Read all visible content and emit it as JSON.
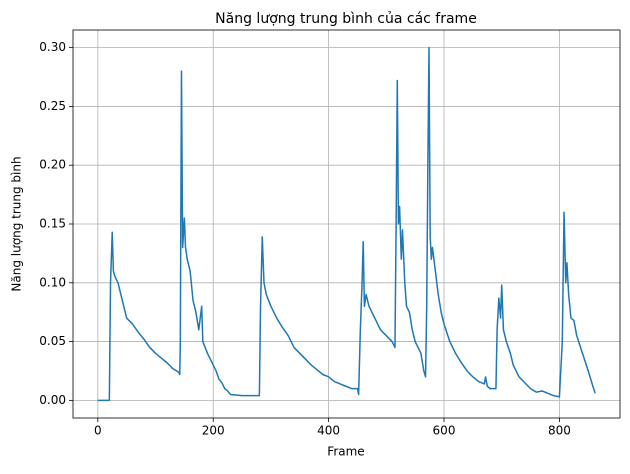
{
  "chart_data": {
    "type": "line",
    "title": "Năng lượng trung bình của các frame",
    "x_label": "Frame",
    "y_label": "Năng lượng trung bình",
    "x": [
      0,
      20,
      22,
      25,
      27,
      30,
      35,
      40,
      45,
      50,
      60,
      70,
      80,
      90,
      100,
      110,
      120,
      130,
      140,
      142,
      143,
      145,
      147,
      150,
      152,
      155,
      160,
      165,
      170,
      175,
      180,
      182,
      190,
      200,
      205,
      210,
      215,
      220,
      225,
      230,
      250,
      270,
      280,
      282,
      285,
      288,
      292,
      300,
      310,
      320,
      330,
      340,
      350,
      360,
      370,
      380,
      390,
      400,
      410,
      420,
      430,
      440,
      450,
      452,
      455,
      458,
      460,
      462,
      465,
      470,
      475,
      480,
      490,
      500,
      510,
      515,
      517,
      519,
      521,
      523,
      526,
      528,
      532,
      535,
      540,
      545,
      550,
      555,
      560,
      565,
      568,
      570,
      572,
      574,
      576,
      578,
      580,
      585,
      590,
      595,
      600,
      610,
      620,
      630,
      640,
      650,
      660,
      670,
      672,
      675,
      680,
      690,
      692,
      695,
      698,
      700,
      703,
      708,
      715,
      720,
      730,
      740,
      750,
      760,
      770,
      780,
      790,
      800,
      805,
      808,
      811,
      813,
      816,
      820,
      825,
      830,
      840,
      850,
      858,
      862
    ],
    "series": [
      {
        "name": "Năng lượng trung bình",
        "color": "#1f77b4",
        "values": [
          0,
          0,
          0.1,
          0.143,
          0.11,
          0.105,
          0.1,
          0.09,
          0.08,
          0.07,
          0.065,
          0.058,
          0.052,
          0.045,
          0.04,
          0.036,
          0.032,
          0.027,
          0.024,
          0.022,
          0.05,
          0.28,
          0.13,
          0.155,
          0.13,
          0.12,
          0.11,
          0.085,
          0.075,
          0.06,
          0.08,
          0.05,
          0.04,
          0.03,
          0.025,
          0.018,
          0.015,
          0.01,
          0.008,
          0.005,
          0.004,
          0.004,
          0.004,
          0.08,
          0.139,
          0.1,
          0.09,
          0.08,
          0.07,
          0.062,
          0.055,
          0.045,
          0.04,
          0.035,
          0.03,
          0.026,
          0.022,
          0.02,
          0.016,
          0.014,
          0.012,
          0.01,
          0.01,
          0.005,
          0.06,
          0.1,
          0.135,
          0.08,
          0.09,
          0.08,
          0.075,
          0.07,
          0.06,
          0.055,
          0.05,
          0.045,
          0.15,
          0.272,
          0.15,
          0.165,
          0.12,
          0.145,
          0.1,
          0.08,
          0.075,
          0.06,
          0.05,
          0.045,
          0.04,
          0.025,
          0.02,
          0.08,
          0.2,
          0.3,
          0.14,
          0.12,
          0.13,
          0.11,
          0.09,
          0.075,
          0.065,
          0.05,
          0.04,
          0.032,
          0.025,
          0.02,
          0.016,
          0.014,
          0.02,
          0.012,
          0.01,
          0.01,
          0.06,
          0.087,
          0.07,
          0.098,
          0.06,
          0.05,
          0.04,
          0.03,
          0.02,
          0.015,
          0.01,
          0.007,
          0.008,
          0.006,
          0.004,
          0.003,
          0.05,
          0.16,
          0.1,
          0.117,
          0.09,
          0.07,
          0.068,
          0.055,
          0.04,
          0.025,
          0.012,
          0.006
        ]
      }
    ],
    "xlim": [
      -43,
      905
    ],
    "ylim": [
      -0.015,
      0.315
    ],
    "xticks": [
      0,
      200,
      400,
      600,
      800
    ],
    "yticks": [
      {
        "value": 0,
        "label": "0.00"
      },
      {
        "value": 0.05,
        "label": "0.05"
      },
      {
        "value": 0.1,
        "label": "0.10"
      },
      {
        "value": 0.15,
        "label": "0.15"
      },
      {
        "value": 0.2,
        "label": "0.20"
      },
      {
        "value": 0.25,
        "label": "0.25"
      },
      {
        "value": 0.3,
        "label": "0.30"
      }
    ],
    "grid": true
  }
}
